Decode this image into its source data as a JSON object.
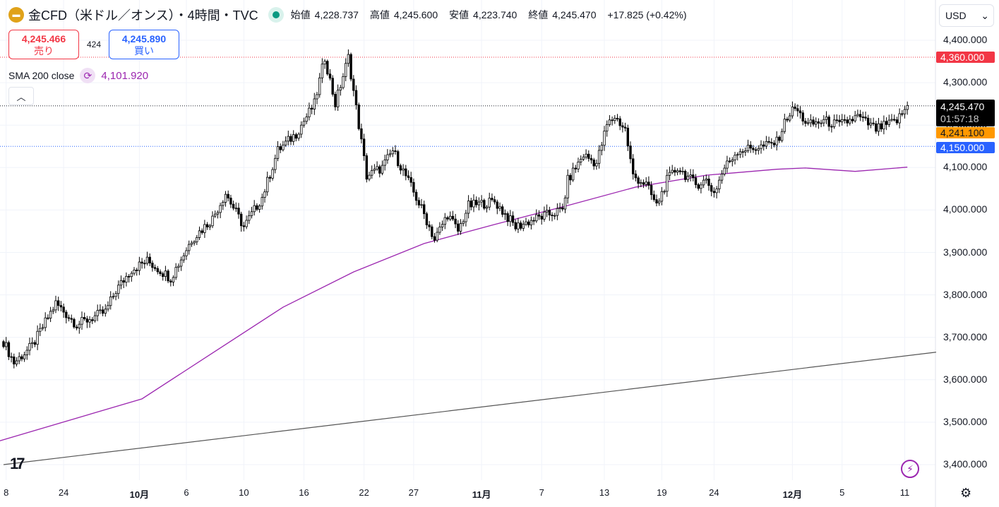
{
  "header": {
    "title": "金CFD（米ドル／オンス）・4時間・TVC",
    "open_label": "始値",
    "open": "4,228.737",
    "high_label": "高値",
    "high": "4,245.600",
    "low_label": "安値",
    "low": "4,223.740",
    "close_label": "終値",
    "close": "4,245.470",
    "change": "+17.825 (+0.42%)"
  },
  "trade": {
    "sell_price": "4,245.466",
    "sell_label": "売り",
    "spread": "424",
    "buy_price": "4,245.890",
    "buy_label": "買い"
  },
  "indicator": {
    "name": "SMA 200 close",
    "value": "4,101.920"
  },
  "currency": "USD",
  "tags": {
    "alert_red": "4,360.000",
    "last": "4,245.470",
    "countdown": "01:57:18",
    "orange": "4,241.100",
    "blue": "4,150.000"
  },
  "colors": {
    "red": "#f23645",
    "blue": "#2962ff",
    "orange": "#ff9800",
    "sma": "#9c27b0"
  },
  "chart_data": {
    "type": "candlestick",
    "ylim": [
      3380,
      4420
    ],
    "yticks": [
      "4,400.000",
      "4,300.000",
      "4,200.000",
      "4,100.000",
      "4,000.000",
      "3,900.000",
      "3,800.000",
      "3,700.000",
      "3,600.000",
      "3,500.000",
      "3,400.000"
    ],
    "ytick_values": [
      4400,
      4300,
      4200,
      4100,
      4000,
      3900,
      3800,
      3700,
      3600,
      3500,
      3400
    ],
    "bars": 347,
    "xticks": [
      {
        "bar": 1,
        "label": "8"
      },
      {
        "bar": 23,
        "label": "24"
      },
      {
        "bar": 52,
        "label": "10月"
      },
      {
        "bar": 70,
        "label": "6"
      },
      {
        "bar": 92,
        "label": "10"
      },
      {
        "bar": 115,
        "label": "16"
      },
      {
        "bar": 138,
        "label": "22"
      },
      {
        "bar": 157,
        "label": "27"
      },
      {
        "bar": 183,
        "label": "11月"
      },
      {
        "bar": 206,
        "label": "7"
      },
      {
        "bar": 230,
        "label": "13"
      },
      {
        "bar": 252,
        "label": "19"
      },
      {
        "bar": 272,
        "label": "24"
      },
      {
        "bar": 302,
        "label": "12月"
      },
      {
        "bar": 321,
        "label": "5"
      },
      {
        "bar": 345,
        "label": "11"
      }
    ],
    "close_path": [
      [
        0,
        3690
      ],
      [
        4,
        3640
      ],
      [
        11,
        3680
      ],
      [
        20,
        3780
      ],
      [
        28,
        3730
      ],
      [
        39,
        3760
      ],
      [
        43,
        3810
      ],
      [
        49,
        3860
      ],
      [
        55,
        3880
      ],
      [
        64,
        3840
      ],
      [
        72,
        3930
      ],
      [
        80,
        3980
      ],
      [
        85,
        4040
      ],
      [
        92,
        3960
      ],
      [
        99,
        4030
      ],
      [
        105,
        4140
      ],
      [
        112,
        4180
      ],
      [
        119,
        4250
      ],
      [
        123,
        4360
      ],
      [
        127,
        4250
      ],
      [
        132,
        4360
      ],
      [
        136,
        4200
      ],
      [
        139,
        4080
      ],
      [
        145,
        4100
      ],
      [
        149,
        4140
      ],
      [
        154,
        4080
      ],
      [
        161,
        3990
      ],
      [
        165,
        3930
      ],
      [
        170,
        3990
      ],
      [
        174,
        3950
      ],
      [
        178,
        4010
      ],
      [
        188,
        4020
      ],
      [
        196,
        3960
      ],
      [
        204,
        3980
      ],
      [
        214,
        4000
      ],
      [
        216,
        4070
      ],
      [
        222,
        4130
      ],
      [
        227,
        4110
      ],
      [
        231,
        4200
      ],
      [
        234,
        4220
      ],
      [
        238,
        4190
      ],
      [
        241,
        4080
      ],
      [
        246,
        4060
      ],
      [
        250,
        4010
      ],
      [
        254,
        4070
      ],
      [
        258,
        4100
      ],
      [
        265,
        4060
      ],
      [
        269,
        4070
      ],
      [
        272,
        4040
      ],
      [
        276,
        4100
      ],
      [
        281,
        4140
      ],
      [
        291,
        4150
      ],
      [
        296,
        4160
      ],
      [
        300,
        4220
      ],
      [
        303,
        4240
      ],
      [
        308,
        4200
      ],
      [
        314,
        4210
      ],
      [
        320,
        4200
      ],
      [
        327,
        4220
      ],
      [
        334,
        4190
      ],
      [
        342,
        4210
      ],
      [
        346,
        4245
      ]
    ],
    "sma200": [
      [
        -2,
        3455
      ],
      [
        53,
        3555
      ],
      [
        80,
        3663
      ],
      [
        107,
        3771
      ],
      [
        134,
        3854
      ],
      [
        161,
        3921
      ],
      [
        188,
        3966
      ],
      [
        215,
        4009
      ],
      [
        242,
        4054
      ],
      [
        269,
        4082
      ],
      [
        296,
        4096
      ],
      [
        307,
        4099
      ],
      [
        326,
        4091
      ],
      [
        346,
        4101
      ]
    ],
    "trendline": [
      [
        0,
        3400
      ],
      [
        357,
        3665
      ]
    ],
    "hlines": [
      {
        "price": 4360,
        "color": "#f23645"
      },
      {
        "price": 4245.47,
        "color": "#131722"
      },
      {
        "price": 4150,
        "color": "#2962ff"
      }
    ]
  }
}
